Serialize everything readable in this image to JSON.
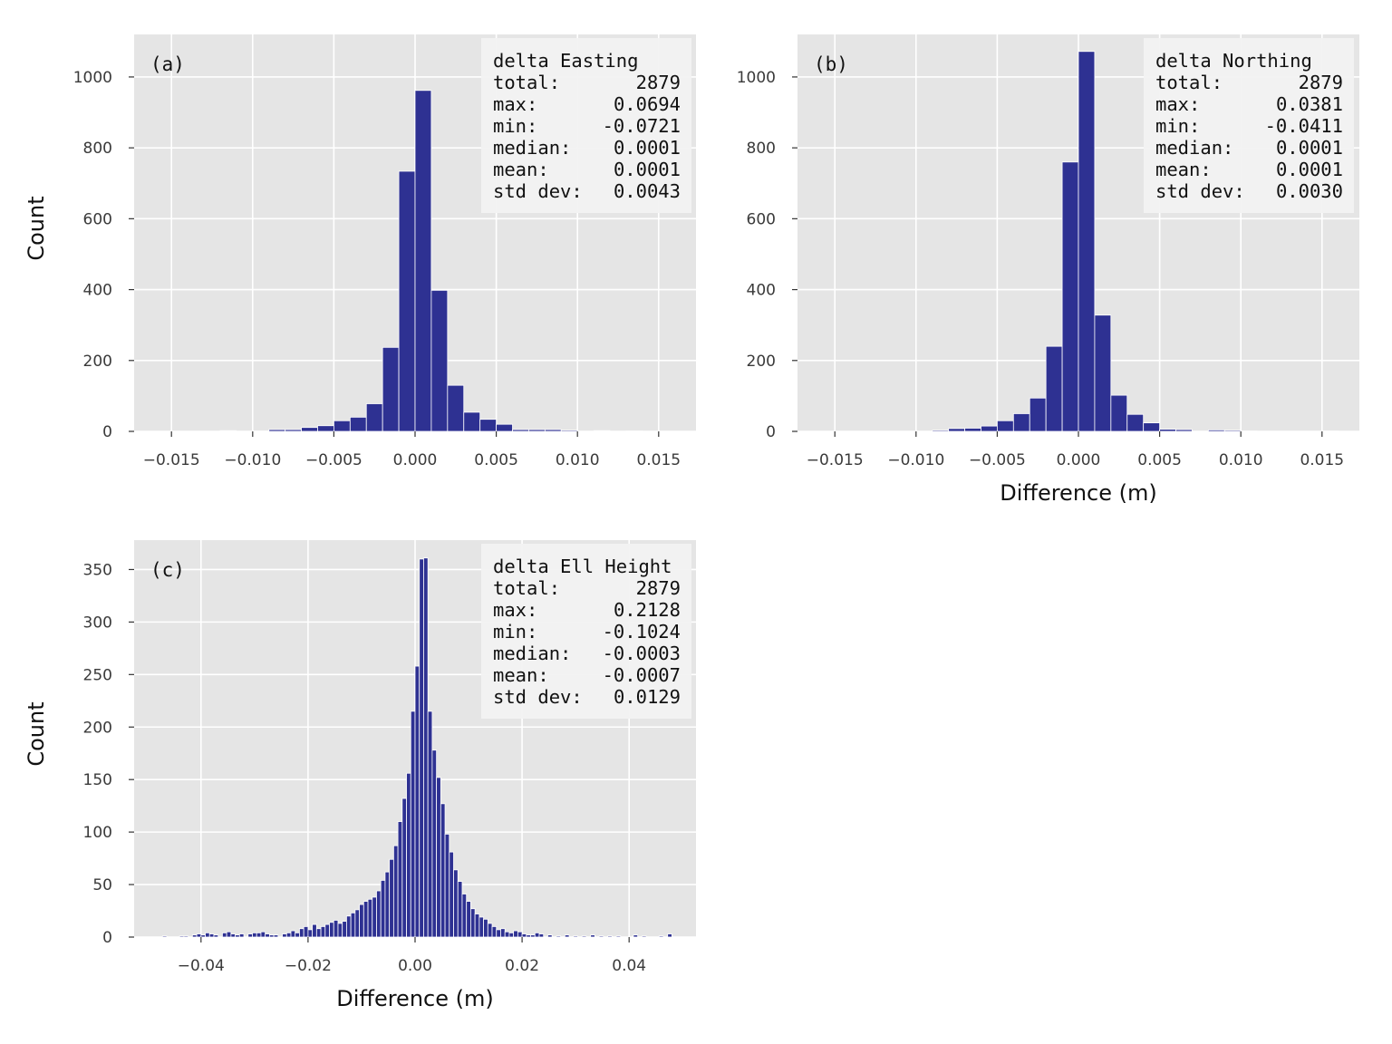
{
  "chart_data": [
    {
      "id": "a",
      "type": "bar",
      "panel_label": "(a)",
      "xlabel": "",
      "ylabel": "Count",
      "xlim": [
        -0.0173,
        0.0173
      ],
      "ylim": [
        0,
        1120
      ],
      "xticks": [
        -0.015,
        -0.01,
        -0.005,
        0.0,
        0.005,
        0.01,
        0.015
      ],
      "xtick_labels": [
        "−0.015",
        "−0.010",
        "−0.005",
        "0.000",
        "0.005",
        "0.010",
        "0.015"
      ],
      "yticks": [
        0,
        200,
        400,
        600,
        800,
        1000
      ],
      "ytick_labels": [
        "0",
        "200",
        "400",
        "600",
        "800",
        "1000"
      ],
      "bin_width": 0.001,
      "bin_centers": [
        -0.0115,
        -0.0095,
        -0.0085,
        -0.0075,
        -0.0065,
        -0.0055,
        -0.0045,
        -0.0035,
        -0.0025,
        -0.0015,
        -0.0005,
        0.0005,
        0.0015,
        0.0025,
        0.0035,
        0.0045,
        0.0055,
        0.0065,
        0.0075,
        0.0085,
        0.0095,
        0.0115,
        0.0135
      ],
      "values": [
        2,
        1,
        5,
        5,
        11,
        16,
        30,
        40,
        78,
        237,
        734,
        962,
        398,
        130,
        54,
        34,
        20,
        5,
        5,
        5,
        3,
        2,
        1
      ],
      "stats": {
        "title": "delta Easting",
        "rows": [
          {
            "key": "total:",
            "value": "2879"
          },
          {
            "key": "max:",
            "value": "0.0694"
          },
          {
            "key": "min:",
            "value": "-0.0721"
          },
          {
            "key": "median:",
            "value": "0.0001"
          },
          {
            "key": "mean:",
            "value": "0.0001"
          },
          {
            "key": "std dev:",
            "value": "0.0043"
          }
        ]
      },
      "grid": true,
      "bar_color": "#2e3192"
    },
    {
      "id": "b",
      "type": "bar",
      "panel_label": "(b)",
      "xlabel": "Difference (m)",
      "ylabel": "",
      "xlim": [
        -0.0173,
        0.0173
      ],
      "ylim": [
        0,
        1120
      ],
      "xticks": [
        -0.015,
        -0.01,
        -0.005,
        0.0,
        0.005,
        0.01,
        0.015
      ],
      "xtick_labels": [
        "−0.015",
        "−0.010",
        "−0.005",
        "0.000",
        "0.005",
        "0.010",
        "0.015"
      ],
      "yticks": [
        0,
        200,
        400,
        600,
        800,
        1000
      ],
      "ytick_labels": [
        "0",
        "200",
        "400",
        "600",
        "800",
        "1000"
      ],
      "bin_width": 0.001,
      "bin_centers": [
        -0.0085,
        -0.0075,
        -0.0065,
        -0.0055,
        -0.0045,
        -0.0035,
        -0.0025,
        -0.0015,
        -0.0005,
        0.0005,
        0.0015,
        0.0025,
        0.0035,
        0.0045,
        0.0055,
        0.0065,
        0.0085,
        0.0095,
        0.0105,
        0.0155
      ],
      "values": [
        3,
        8,
        9,
        15,
        30,
        50,
        94,
        240,
        760,
        1072,
        328,
        102,
        48,
        24,
        6,
        5,
        4,
        3,
        1,
        1
      ],
      "stats": {
        "title": "delta Northing",
        "rows": [
          {
            "key": "total:",
            "value": "2879"
          },
          {
            "key": "max:",
            "value": "0.0381"
          },
          {
            "key": "min:",
            "value": "-0.0411"
          },
          {
            "key": "median:",
            "value": "0.0001"
          },
          {
            "key": "mean:",
            "value": "0.0001"
          },
          {
            "key": "std dev:",
            "value": "0.0030"
          }
        ]
      },
      "grid": true,
      "bar_color": "#2e3192"
    },
    {
      "id": "c",
      "type": "bar",
      "panel_label": "(c)",
      "xlabel": "Difference (m)",
      "ylabel": "Count",
      "xlim": [
        -0.0525,
        0.0525
      ],
      "ylim": [
        0,
        378
      ],
      "xticks": [
        -0.04,
        -0.02,
        0.0,
        0.02,
        0.04
      ],
      "xtick_labels": [
        "−0.04",
        "−0.02",
        "0.00",
        "0.02",
        "0.04"
      ],
      "yticks": [
        0,
        50,
        100,
        150,
        200,
        250,
        300,
        350
      ],
      "ytick_labels": [
        "0",
        "50",
        "100",
        "150",
        "200",
        "250",
        "300",
        "350"
      ],
      "bin_width": 0.0008,
      "bin_centers": [
        -0.0468,
        -0.0436,
        -0.0428,
        -0.0412,
        -0.0404,
        -0.0396,
        -0.0388,
        -0.038,
        -0.0372,
        -0.0356,
        -0.0348,
        -0.034,
        -0.0332,
        -0.0324,
        -0.0308,
        -0.03,
        -0.0292,
        -0.0284,
        -0.0276,
        -0.0268,
        -0.026,
        -0.0244,
        -0.0236,
        -0.0228,
        -0.022,
        -0.0212,
        -0.0204,
        -0.0196,
        -0.0188,
        -0.018,
        -0.0172,
        -0.0164,
        -0.0156,
        -0.0148,
        -0.014,
        -0.0132,
        -0.0124,
        -0.0116,
        -0.0108,
        -0.01,
        -0.0092,
        -0.0084,
        -0.0076,
        -0.0068,
        -0.006,
        -0.0052,
        -0.0044,
        -0.0036,
        -0.0028,
        -0.002,
        -0.0012,
        -0.0004,
        0.0004,
        0.0012,
        0.002,
        0.0028,
        0.0036,
        0.0044,
        0.0052,
        0.006,
        0.0068,
        0.0076,
        0.0084,
        0.0092,
        0.01,
        0.0108,
        0.0116,
        0.0124,
        0.0132,
        0.014,
        0.0148,
        0.0156,
        0.0164,
        0.0172,
        0.018,
        0.0188,
        0.0196,
        0.0204,
        0.0212,
        0.022,
        0.0228,
        0.0236,
        0.0252,
        0.0268,
        0.0284,
        0.03,
        0.0316,
        0.0332,
        0.0348,
        0.0364,
        0.038,
        0.0412,
        0.0428,
        0.046,
        0.0476
      ],
      "values": [
        1,
        1,
        1,
        2,
        3,
        2,
        4,
        3,
        2,
        4,
        5,
        3,
        2,
        3,
        3,
        4,
        4,
        5,
        3,
        2,
        2,
        3,
        4,
        6,
        4,
        8,
        10,
        7,
        12,
        8,
        10,
        12,
        14,
        16,
        13,
        15,
        20,
        23,
        26,
        31,
        34,
        36,
        38,
        44,
        54,
        62,
        74,
        87,
        110,
        132,
        156,
        215,
        258,
        360,
        361,
        215,
        178,
        152,
        127,
        98,
        81,
        64,
        53,
        41,
        34,
        27,
        22,
        19,
        17,
        13,
        10,
        7,
        8,
        5,
        4,
        6,
        5,
        3,
        2,
        2,
        4,
        3,
        2,
        1,
        2,
        1,
        1,
        2,
        1,
        1,
        1,
        2,
        1,
        1,
        3
      ],
      "stats": {
        "title": "delta Ell Height",
        "rows": [
          {
            "key": "total:",
            "value": "2879"
          },
          {
            "key": "max:",
            "value": "0.2128"
          },
          {
            "key": "min:",
            "value": "-0.1024"
          },
          {
            "key": "median:",
            "value": "-0.0003"
          },
          {
            "key": "mean:",
            "value": "-0.0007"
          },
          {
            "key": "std dev:",
            "value": "0.0129"
          }
        ]
      },
      "grid": true,
      "bar_color": "#2e3192"
    }
  ]
}
